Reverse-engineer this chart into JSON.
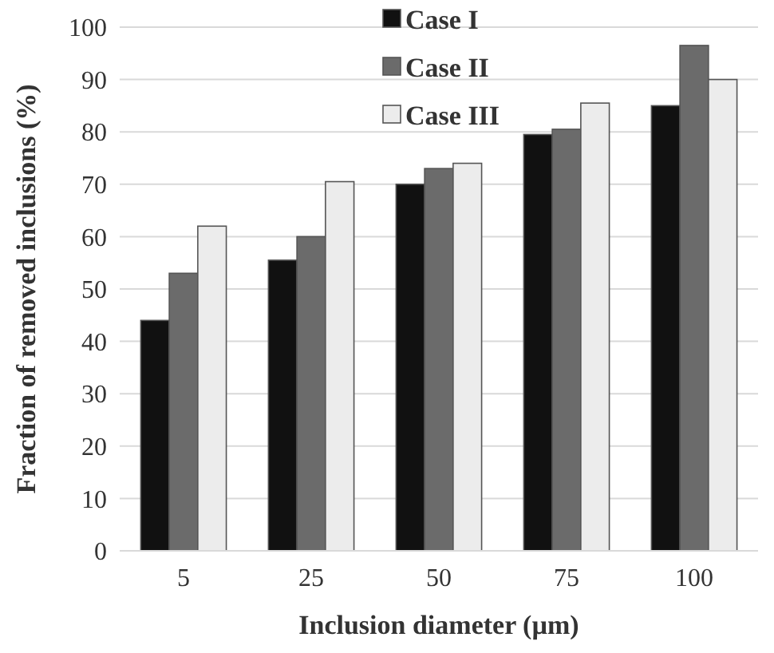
{
  "chart_data": {
    "type": "bar",
    "xlabel": "Inclusion diameter (µm)",
    "ylabel": "Fraction of removed inclusions (%)",
    "categories": [
      "5",
      "25",
      "50",
      "75",
      "100"
    ],
    "series": [
      {
        "name": "Case I",
        "color": "#111111",
        "values": [
          44,
          55.5,
          70,
          79.5,
          85
        ]
      },
      {
        "name": "Case II",
        "color": "#6b6b6b",
        "values": [
          53,
          60,
          73,
          80.5,
          96.5
        ]
      },
      {
        "name": "Case III",
        "color": "#ececec",
        "values": [
          62,
          70.5,
          74,
          85.5,
          90
        ]
      }
    ],
    "ylim": [
      0,
      100
    ],
    "yticks": [
      0,
      10,
      20,
      30,
      40,
      50,
      60,
      70,
      80,
      90,
      100
    ],
    "grid": "y",
    "legend": "top"
  }
}
